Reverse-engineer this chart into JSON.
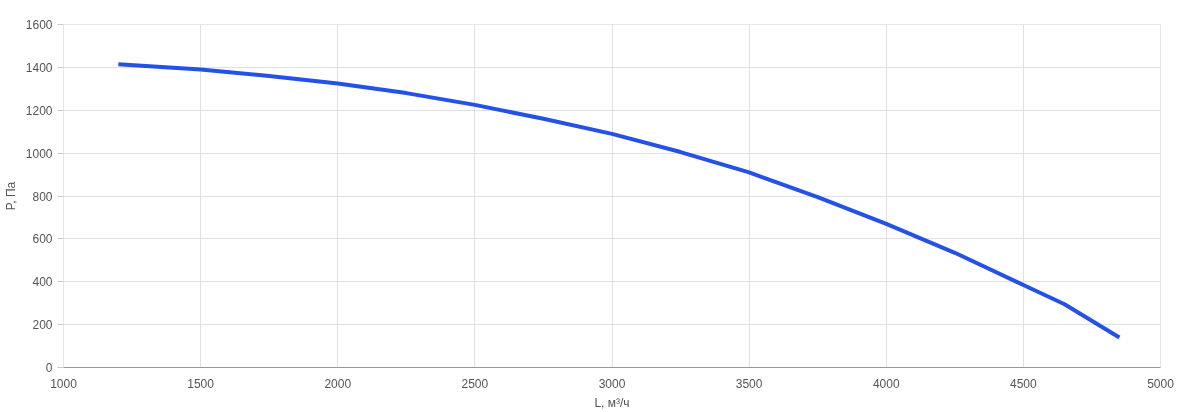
{
  "chart_data": {
    "type": "line",
    "xlabel": "L, м³/ч",
    "ylabel": "P, Па",
    "x": [
      1200,
      1500,
      1750,
      2000,
      2250,
      2500,
      2750,
      3000,
      3250,
      3500,
      3750,
      4000,
      4250,
      4500,
      4650,
      4850
    ],
    "series": [
      {
        "color": "#2451e6",
        "values": [
          1415,
          1390,
          1360,
          1325,
          1280,
          1225,
          1160,
          1090,
          1005,
          910,
          795,
          670,
          535,
          385,
          295,
          140
        ]
      }
    ],
    "xlim": [
      1000,
      5000
    ],
    "xticks": [
      1000,
      1500,
      2000,
      2500,
      3000,
      3500,
      4000,
      4500,
      5000
    ],
    "ylim": [
      0,
      1600
    ],
    "yticks": [
      0,
      200,
      400,
      600,
      800,
      1000,
      1200,
      1400,
      1600
    ],
    "grid": true,
    "marker": "none",
    "line_style": "solid"
  }
}
